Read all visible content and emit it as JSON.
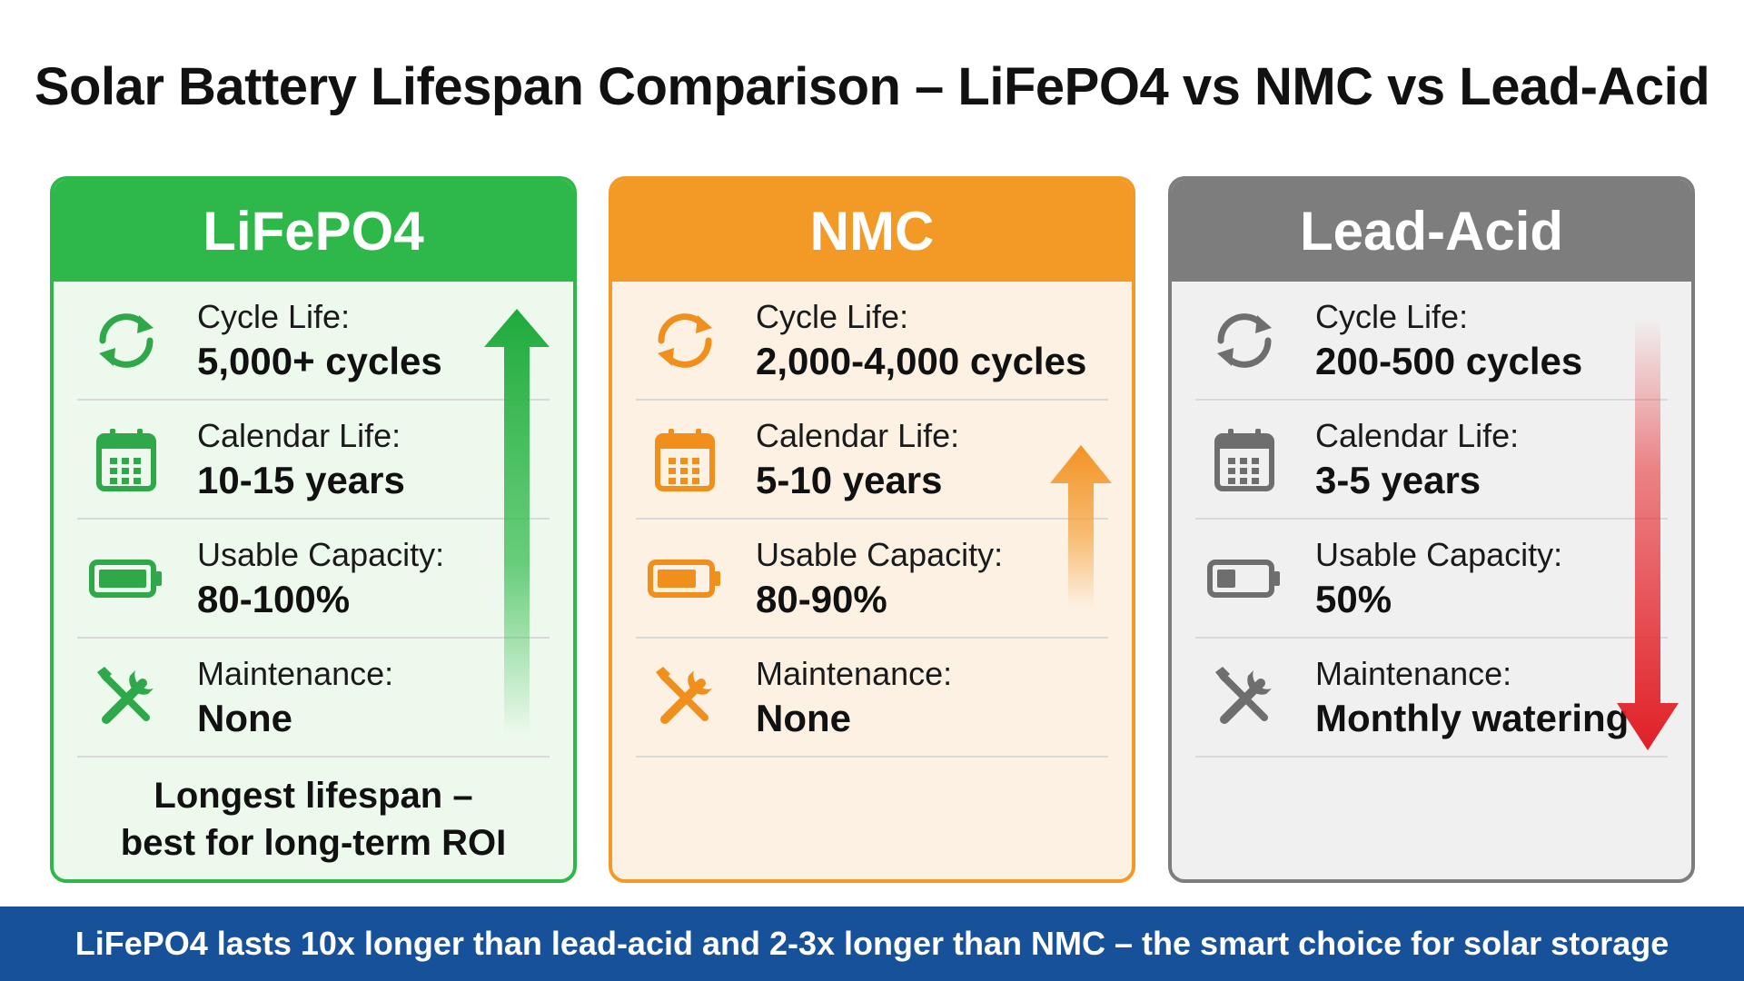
{
  "title": "Solar Battery Lifespan Comparison – LiFePO4 vs NMC vs Lead-Acid",
  "cards": [
    {
      "name": "LiFePO4",
      "color": "#2fb84a",
      "bg": "#eef9ee",
      "icon_color": "#2fa84a",
      "trend": "up",
      "rows": [
        {
          "label": "Cycle Life:",
          "value": "5,000+ cycles",
          "icon": "cycle-icon"
        },
        {
          "label": "Calendar Life:",
          "value": "10-15 years",
          "icon": "calendar-icon"
        },
        {
          "label": "Usable Capacity:",
          "value": "80-100%",
          "icon": "battery-full-icon"
        },
        {
          "label": "Maintenance:",
          "value": "None",
          "icon": "tools-icon"
        }
      ],
      "footer_line1": "Longest lifespan –",
      "footer_line2": "best for long-term ROI"
    },
    {
      "name": "NMC",
      "color": "#f39a26",
      "bg": "#fdf1e4",
      "icon_color": "#f08f1c",
      "trend": "up-short",
      "rows": [
        {
          "label": "Cycle Life:",
          "value": "2,000-4,000 cycles",
          "icon": "cycle-icon"
        },
        {
          "label": "Calendar Life:",
          "value": "5-10 years",
          "icon": "calendar-icon"
        },
        {
          "label": "Usable Capacity:",
          "value": "80-90%",
          "icon": "battery-high-icon"
        },
        {
          "label": "Maintenance:",
          "value": "None",
          "icon": "tools-icon"
        }
      ]
    },
    {
      "name": "Lead-Acid",
      "color": "#7d7d7d",
      "bg": "#f0f0f0",
      "icon_color": "#6e6e6e",
      "trend": "down",
      "rows": [
        {
          "label": "Cycle Life:",
          "value": "200-500 cycles",
          "icon": "cycle-icon"
        },
        {
          "label": "Calendar Life:",
          "value": "3-5 years",
          "icon": "calendar-icon"
        },
        {
          "label": "Usable Capacity:",
          "value": "50%",
          "icon": "battery-low-icon"
        },
        {
          "label": "Maintenance:",
          "value": "Monthly watering",
          "icon": "tools-icon"
        }
      ]
    }
  ],
  "banner": "LiFePO4 lasts 10x longer than lead-acid and 2-3x longer than NMC – the smart choice for solar storage"
}
